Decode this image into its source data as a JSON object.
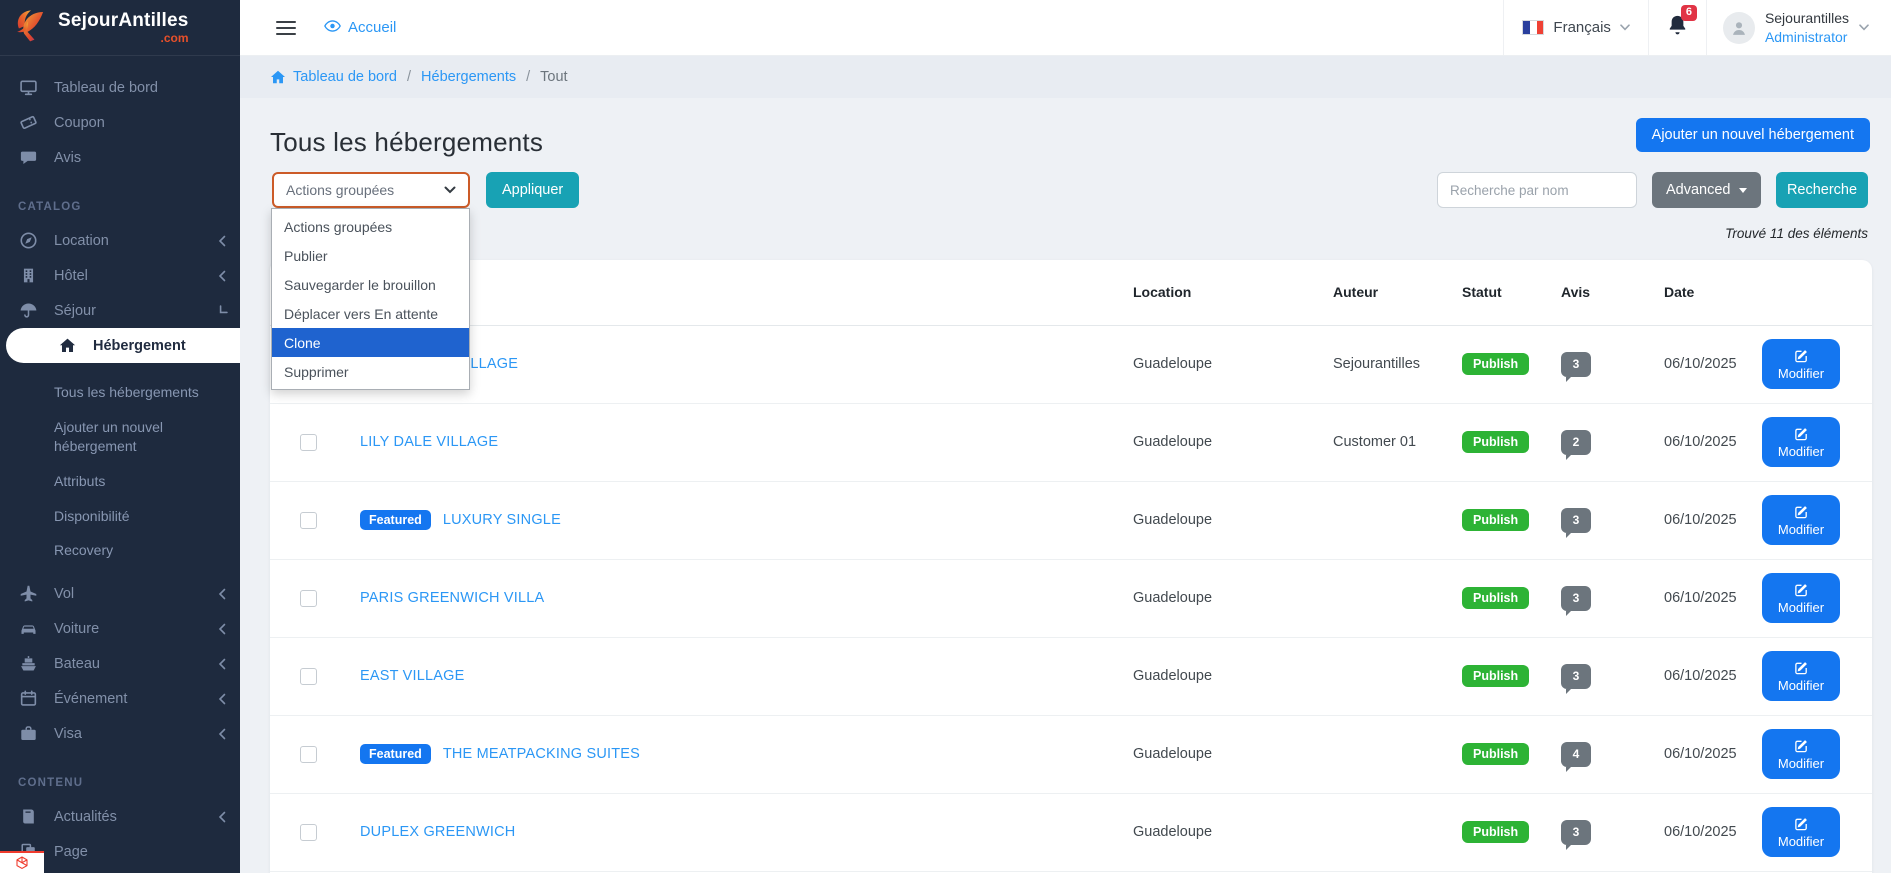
{
  "brand": {
    "name": "SejourAntilles",
    "tld": ".com"
  },
  "header": {
    "home_link": "Accueil",
    "language": "Français",
    "notification_count": "6",
    "user_name": "Sejourantilles",
    "user_role": "Administrator"
  },
  "breadcrumb": {
    "items": [
      "Tableau de bord",
      "Hébergements"
    ],
    "current": "Tout",
    "separator": "/"
  },
  "sidebar": {
    "sections": [
      {
        "label": "",
        "items": [
          {
            "icon": "monitor",
            "label": "Tableau de bord"
          },
          {
            "icon": "ticket",
            "label": "Coupon"
          },
          {
            "icon": "chat",
            "label": "Avis"
          }
        ]
      },
      {
        "label": "CATALOG",
        "items": [
          {
            "icon": "compass",
            "label": "Location",
            "chevron": "collapsed"
          },
          {
            "icon": "building",
            "label": "Hôtel",
            "chevron": "collapsed"
          },
          {
            "icon": "umbrella",
            "label": "Séjour",
            "chevron": "open"
          },
          {
            "icon": "home",
            "label": "Hébergement",
            "active": true,
            "children": [
              "Tous les hébergements",
              "Ajouter un nouvel hébergement",
              "Attributs",
              "Disponibilité",
              "Recovery"
            ]
          },
          {
            "icon": "plane",
            "label": "Vol",
            "chevron": "collapsed"
          },
          {
            "icon": "car",
            "label": "Voiture",
            "chevron": "collapsed"
          },
          {
            "icon": "ship",
            "label": "Bateau",
            "chevron": "collapsed"
          },
          {
            "icon": "calendar",
            "label": "Événement",
            "chevron": "collapsed"
          },
          {
            "icon": "briefcase",
            "label": "Visa",
            "chevron": "collapsed"
          }
        ]
      },
      {
        "label": "CONTENU",
        "items": [
          {
            "icon": "book",
            "label": "Actualités",
            "chevron": "collapsed"
          },
          {
            "icon": "pages",
            "label": "Page"
          }
        ]
      }
    ]
  },
  "page": {
    "title": "Tous les hébergements",
    "add_button": "Ajouter un nouvel hébergement",
    "results_count": "Trouvé 11 des éléments"
  },
  "bulk_actions": {
    "selected": "Actions groupées",
    "apply_label": "Appliquer",
    "options": [
      {
        "label": "Actions groupées",
        "highlighted": false
      },
      {
        "label": "Publier",
        "highlighted": false
      },
      {
        "label": "Sauvegarder le brouillon",
        "highlighted": false
      },
      {
        "label": "Déplacer vers En attente",
        "highlighted": false
      },
      {
        "label": "Clone",
        "highlighted": true
      },
      {
        "label": "Supprimer",
        "highlighted": false
      }
    ]
  },
  "search": {
    "placeholder": "Recherche par nom",
    "advanced_label": "Advanced",
    "search_label": "Recherche"
  },
  "table": {
    "columns": {
      "location": "Location",
      "author": "Auteur",
      "status": "Statut",
      "reviews": "Avis",
      "date": "Date"
    },
    "edit_label": "Modifier",
    "featured_label": "Featured",
    "rows": [
      {
        "name": "GREENWICH VILLAGE",
        "featured": false,
        "location": "Guadeloupe",
        "author": "Sejourantilles",
        "status": "Publish",
        "reviews": "3",
        "date": "06/10/2025"
      },
      {
        "name": "LILY DALE VILLAGE",
        "featured": false,
        "location": "Guadeloupe",
        "author": "Customer 01",
        "status": "Publish",
        "reviews": "2",
        "date": "06/10/2025"
      },
      {
        "name": "LUXURY SINGLE",
        "featured": true,
        "location": "Guadeloupe",
        "author": "",
        "status": "Publish",
        "reviews": "3",
        "date": "06/10/2025"
      },
      {
        "name": "PARIS GREENWICH VILLA",
        "featured": false,
        "location": "Guadeloupe",
        "author": "",
        "status": "Publish",
        "reviews": "3",
        "date": "06/10/2025"
      },
      {
        "name": "EAST VILLAGE",
        "featured": false,
        "location": "Guadeloupe",
        "author": "",
        "status": "Publish",
        "reviews": "3",
        "date": "06/10/2025"
      },
      {
        "name": "THE MEATPACKING SUITES",
        "featured": true,
        "location": "Guadeloupe",
        "author": "",
        "status": "Publish",
        "reviews": "4",
        "date": "06/10/2025"
      },
      {
        "name": "DUPLEX GREENWICH",
        "featured": false,
        "location": "Guadeloupe",
        "author": "",
        "status": "Publish",
        "reviews": "3",
        "date": "06/10/2025"
      }
    ]
  },
  "colors": {
    "sidebar_bg": "#1e2a3e",
    "accent_blue": "#1476f0",
    "teal": "#18a2b4",
    "green": "#2db335",
    "select_border_orange": "#cc5b28",
    "dropdown_highlight": "#1f63cf",
    "badge_red": "#e13445",
    "link_blue": "#2b97f5"
  }
}
